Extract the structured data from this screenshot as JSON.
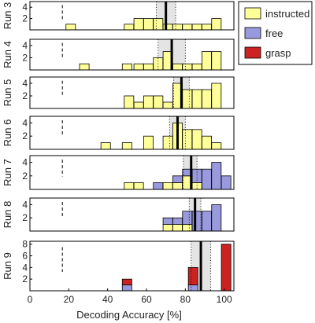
{
  "chart_data": {
    "type": "bar",
    "variant": "stacked-histogram-panels",
    "xlabel": "Decoding Accuracy [%]",
    "xlim": [
      0,
      105
    ],
    "xticks": [
      0,
      20,
      40,
      60,
      80,
      100
    ],
    "chance_level": 16.7,
    "bin_width": 5,
    "legend": {
      "placement": "top-right",
      "entries": [
        {
          "name": "instructed",
          "color": "#ffff99"
        },
        {
          "name": "free",
          "color": "#9999dd"
        },
        {
          "name": "grasp",
          "color": "#cc2222"
        }
      ]
    },
    "panels": [
      {
        "label": "Run 3",
        "ylim": [
          0,
          5
        ],
        "yticks": [
          2,
          4
        ],
        "mean": 70,
        "sd": [
          65,
          75
        ],
        "bins": [
          {
            "x": 21,
            "instructed": 1,
            "free": 0,
            "grasp": 0
          },
          {
            "x": 51,
            "instructed": 1,
            "free": 0,
            "grasp": 0
          },
          {
            "x": 56,
            "instructed": 2,
            "free": 0,
            "grasp": 0
          },
          {
            "x": 61,
            "instructed": 2,
            "free": 0,
            "grasp": 0
          },
          {
            "x": 66,
            "instructed": 2,
            "free": 0,
            "grasp": 0
          },
          {
            "x": 71,
            "instructed": 1,
            "free": 0,
            "grasp": 0
          },
          {
            "x": 76,
            "instructed": 1,
            "free": 0,
            "grasp": 0
          },
          {
            "x": 81,
            "instructed": 1,
            "free": 0,
            "grasp": 0
          },
          {
            "x": 86,
            "instructed": 1,
            "free": 0,
            "grasp": 0
          },
          {
            "x": 91,
            "instructed": 1,
            "free": 0,
            "grasp": 0
          },
          {
            "x": 96,
            "instructed": 2,
            "free": 0,
            "grasp": 0
          }
        ]
      },
      {
        "label": "Run 4",
        "ylim": [
          0,
          5
        ],
        "yticks": [
          2,
          4
        ],
        "mean": 73,
        "sd": [
          66,
          80
        ],
        "bins": [
          {
            "x": 28,
            "instructed": 1,
            "free": 0,
            "grasp": 0
          },
          {
            "x": 50,
            "instructed": 1,
            "free": 0,
            "grasp": 0
          },
          {
            "x": 56,
            "instructed": 1,
            "free": 0,
            "grasp": 0
          },
          {
            "x": 61,
            "instructed": 1,
            "free": 0,
            "grasp": 0
          },
          {
            "x": 66,
            "instructed": 2,
            "free": 0,
            "grasp": 0
          },
          {
            "x": 71,
            "instructed": 3,
            "free": 0,
            "grasp": 0
          },
          {
            "x": 76,
            "instructed": 1,
            "free": 0,
            "grasp": 0
          },
          {
            "x": 81,
            "instructed": 1,
            "free": 0,
            "grasp": 0
          },
          {
            "x": 86,
            "instructed": 1,
            "free": 0,
            "grasp": 0
          },
          {
            "x": 91,
            "instructed": 3,
            "free": 0,
            "grasp": 0
          },
          {
            "x": 96,
            "instructed": 3,
            "free": 0,
            "grasp": 0
          }
        ]
      },
      {
        "label": "Run 5",
        "ylim": [
          0,
          5
        ],
        "yticks": [
          2,
          4
        ],
        "mean": 78,
        "sd": [
          74,
          82
        ],
        "bins": [
          {
            "x": 51,
            "instructed": 2,
            "free": 0,
            "grasp": 0
          },
          {
            "x": 56,
            "instructed": 1,
            "free": 0,
            "grasp": 0
          },
          {
            "x": 61,
            "instructed": 2,
            "free": 0,
            "grasp": 0
          },
          {
            "x": 66,
            "instructed": 2,
            "free": 0,
            "grasp": 0
          },
          {
            "x": 71,
            "instructed": 1,
            "free": 0,
            "grasp": 0
          },
          {
            "x": 76,
            "instructed": 4,
            "free": 0,
            "grasp": 0
          },
          {
            "x": 81,
            "instructed": 3,
            "free": 0,
            "grasp": 0
          },
          {
            "x": 86,
            "instructed": 3,
            "free": 0,
            "grasp": 0
          },
          {
            "x": 91,
            "instructed": 3,
            "free": 0,
            "grasp": 0
          },
          {
            "x": 96,
            "instructed": 4,
            "free": 0,
            "grasp": 0
          }
        ]
      },
      {
        "label": "Run 6",
        "ylim": [
          0,
          5
        ],
        "yticks": [
          2,
          4
        ],
        "mean": 76,
        "sd": [
          72,
          80
        ],
        "bins": [
          {
            "x": 39,
            "instructed": 1,
            "free": 0,
            "grasp": 0
          },
          {
            "x": 50,
            "instructed": 1,
            "free": 0,
            "grasp": 0
          },
          {
            "x": 61,
            "instructed": 2,
            "free": 0,
            "grasp": 0
          },
          {
            "x": 71,
            "instructed": 2,
            "free": 0,
            "grasp": 0
          },
          {
            "x": 76,
            "instructed": 4,
            "free": 0,
            "grasp": 0
          },
          {
            "x": 81,
            "instructed": 3,
            "free": 0,
            "grasp": 0
          },
          {
            "x": 86,
            "instructed": 3,
            "free": 0,
            "grasp": 0
          },
          {
            "x": 91,
            "instructed": 2,
            "free": 0,
            "grasp": 0
          },
          {
            "x": 96,
            "instructed": 1,
            "free": 0,
            "grasp": 0
          }
        ]
      },
      {
        "label": "Run 7",
        "ylim": [
          0,
          5
        ],
        "yticks": [
          2,
          4
        ],
        "mean": 83,
        "sd": [
          79,
          86
        ],
        "bins": [
          {
            "x": 51,
            "instructed": 1,
            "free": 0,
            "grasp": 0
          },
          {
            "x": 56,
            "instructed": 1,
            "free": 0,
            "grasp": 0
          },
          {
            "x": 66,
            "instructed": 0,
            "free": 1,
            "grasp": 0
          },
          {
            "x": 71,
            "instructed": 1,
            "free": 0,
            "grasp": 0
          },
          {
            "x": 76,
            "instructed": 1,
            "free": 1,
            "grasp": 0
          },
          {
            "x": 81,
            "instructed": 2,
            "free": 1,
            "grasp": 0
          },
          {
            "x": 86,
            "instructed": 1,
            "free": 2,
            "grasp": 0
          },
          {
            "x": 91,
            "instructed": 0,
            "free": 3,
            "grasp": 0
          },
          {
            "x": 96,
            "instructed": 0,
            "free": 4,
            "grasp": 0
          },
          {
            "x": 101,
            "instructed": 0,
            "free": 2,
            "grasp": 0
          }
        ]
      },
      {
        "label": "Run 8",
        "ylim": [
          0,
          5
        ],
        "yticks": [
          2,
          4
        ],
        "mean": 85,
        "sd": [
          82,
          88
        ],
        "bins": [
          {
            "x": 71,
            "instructed": 1,
            "free": 1,
            "grasp": 0
          },
          {
            "x": 76,
            "instructed": 1,
            "free": 1,
            "grasp": 0
          },
          {
            "x": 81,
            "instructed": 1,
            "free": 2,
            "grasp": 0
          },
          {
            "x": 86,
            "instructed": 0,
            "free": 3,
            "grasp": 0
          },
          {
            "x": 91,
            "instructed": 0,
            "free": 3,
            "grasp": 0
          },
          {
            "x": 96,
            "instructed": 0,
            "free": 4,
            "grasp": 0
          }
        ]
      },
      {
        "label": "Run 9",
        "ylim": [
          0,
          8.5
        ],
        "yticks": [
          2,
          4,
          6,
          8
        ],
        "mean": 88,
        "sd": [
          83,
          93
        ],
        "bins": [
          {
            "x": 50,
            "instructed": 0,
            "free": 1,
            "grasp": 1
          },
          {
            "x": 84,
            "instructed": 0,
            "free": 1,
            "grasp": 3
          },
          {
            "x": 101,
            "instructed": 0,
            "free": 0,
            "grasp": 8
          }
        ]
      }
    ]
  }
}
